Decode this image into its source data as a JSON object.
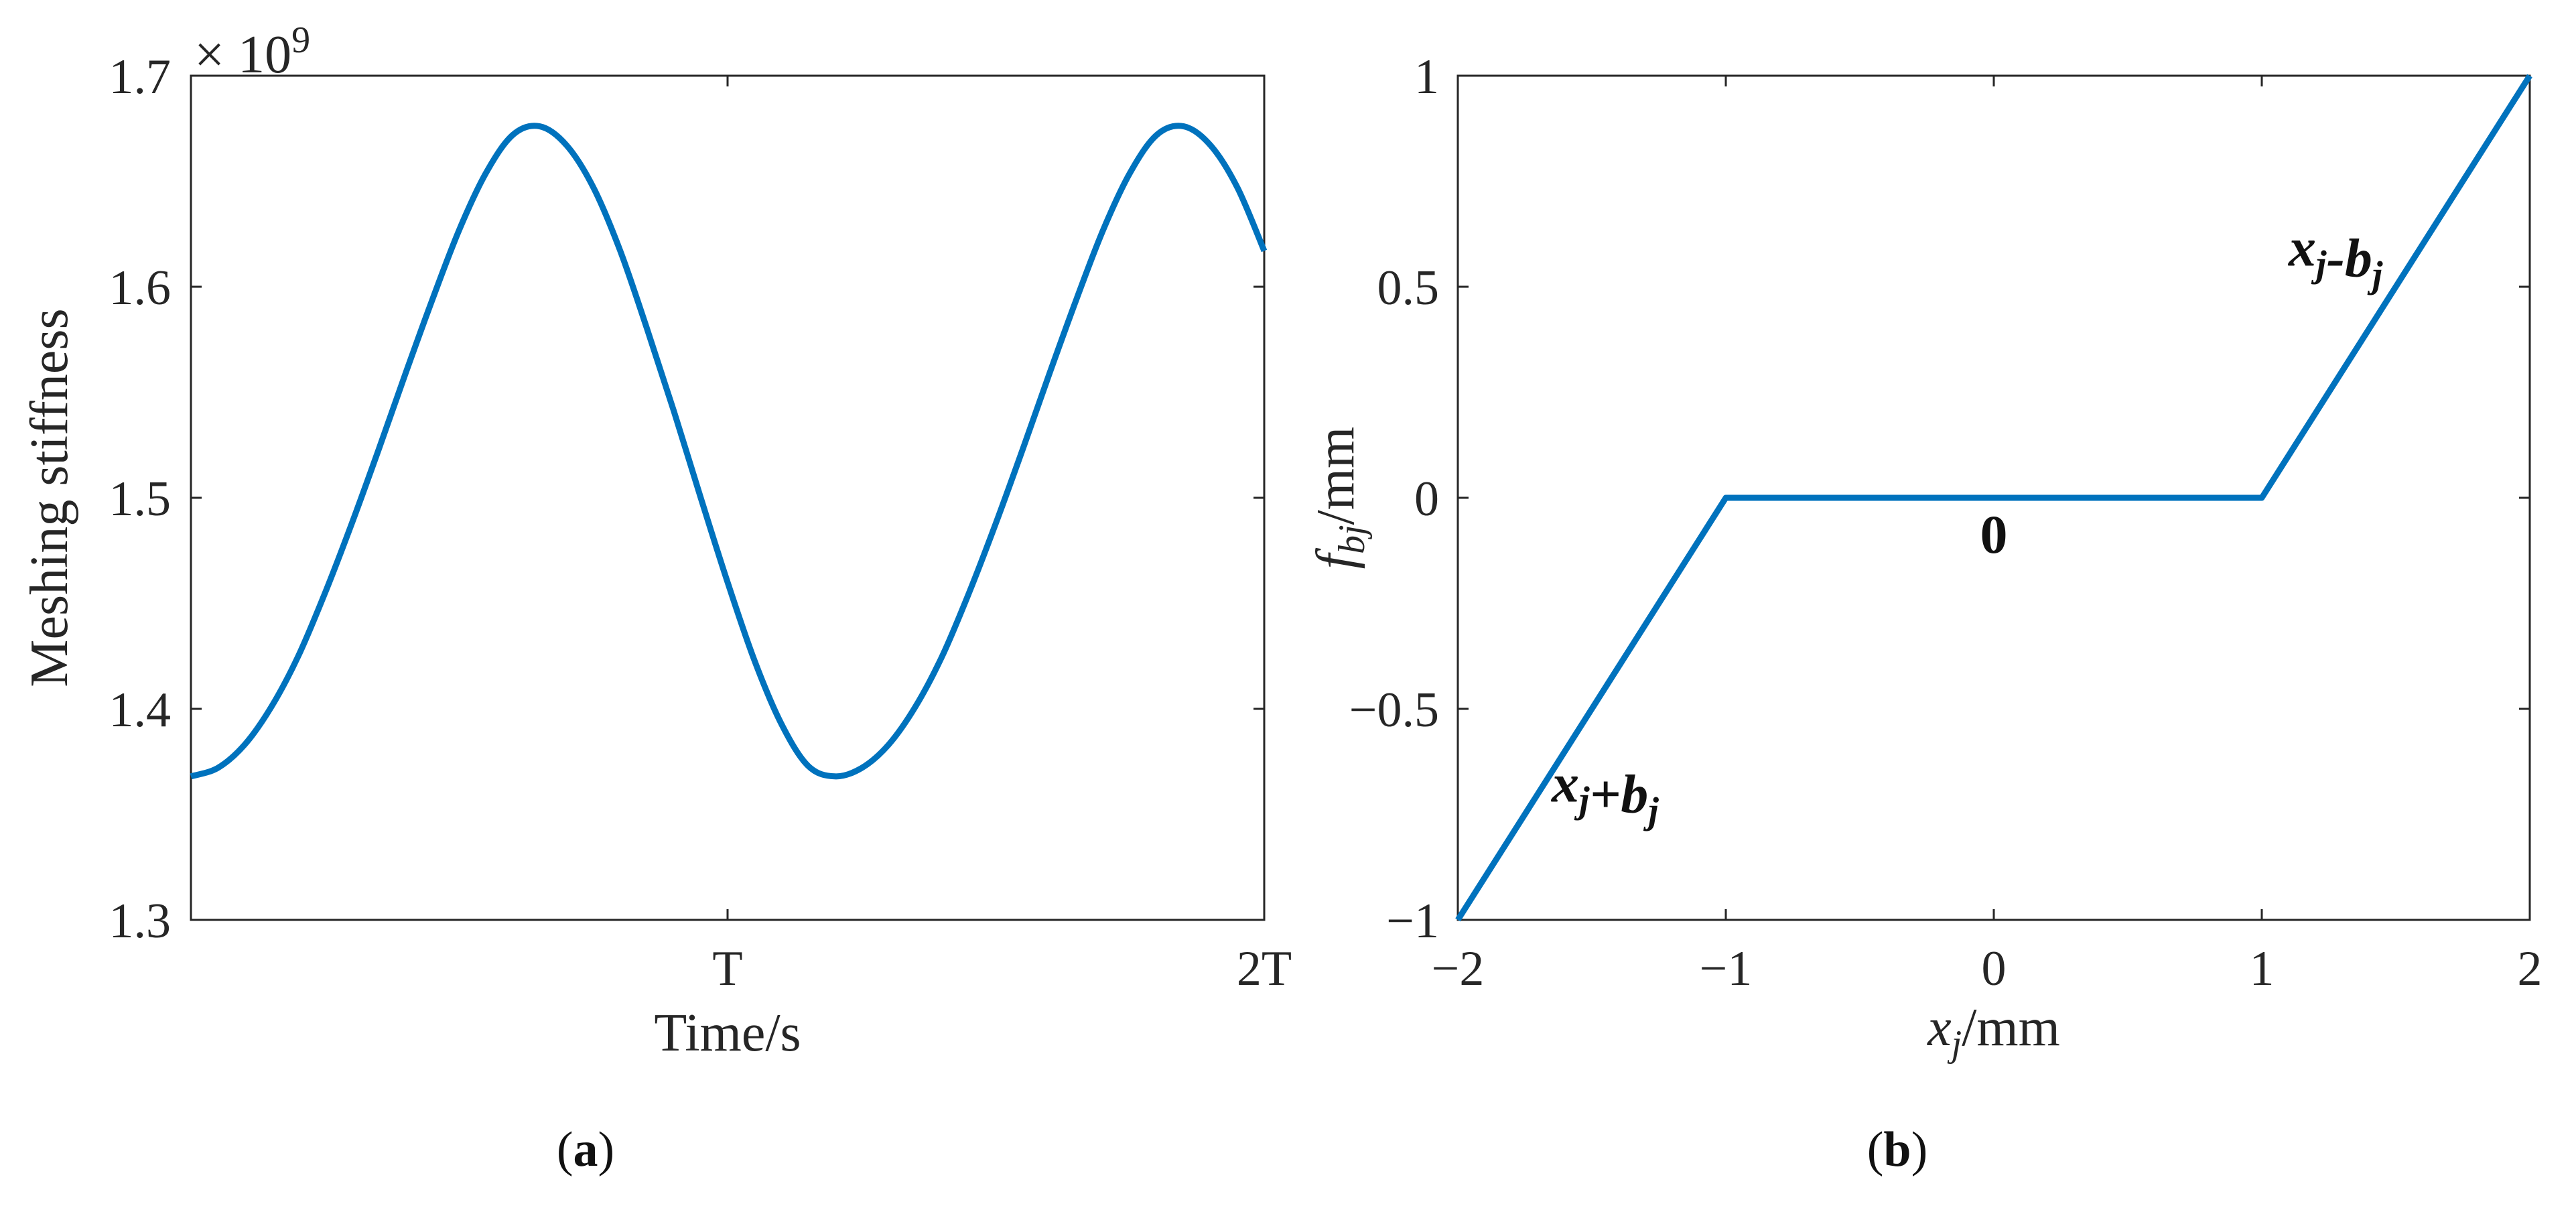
{
  "chart_data": [
    {
      "type": "line",
      "panel_caption": {
        "open": "(",
        "letter": "a",
        "close": ")"
      },
      "xlabel": "Time/s",
      "ylabel": "Meshing stiffness",
      "exponent_label": {
        "base": "× 10",
        "power": "9"
      },
      "ylim": [
        1.3,
        1.7
      ],
      "xlim": [
        0,
        2
      ],
      "x_ticks": [
        {
          "value": 1,
          "label": "T"
        },
        {
          "value": 2,
          "label": "2T"
        }
      ],
      "y_ticks": [
        {
          "value": 1.3,
          "label": "1.3"
        },
        {
          "value": 1.4,
          "label": "1.4"
        },
        {
          "value": 1.5,
          "label": "1.5"
        },
        {
          "value": 1.6,
          "label": "1.6"
        },
        {
          "value": 1.7,
          "label": "1.7"
        }
      ],
      "series": [
        {
          "color": "#0072BD",
          "x": [
            0,
            0.05,
            0.1,
            0.15,
            0.2,
            0.25,
            0.3,
            0.35,
            0.4,
            0.45,
            0.5,
            0.55,
            0.6,
            0.65,
            0.7,
            0.75,
            0.8,
            0.85,
            0.9,
            0.95,
            1.0,
            1.05,
            1.1,
            1.15,
            1.2,
            1.25,
            1.3,
            1.35,
            1.4,
            1.45,
            1.5,
            1.55,
            1.6,
            1.65,
            1.7,
            1.75,
            1.8,
            1.85,
            1.9,
            1.95,
            2.0
          ],
          "y": [
            1.368,
            1.372,
            1.383,
            1.401,
            1.425,
            1.455,
            1.488,
            1.523,
            1.559,
            1.594,
            1.627,
            1.654,
            1.672,
            1.676,
            1.667,
            1.647,
            1.617,
            1.58,
            1.541,
            1.5,
            1.46,
            1.423,
            1.393,
            1.373,
            1.368,
            1.372,
            1.383,
            1.401,
            1.425,
            1.455,
            1.488,
            1.523,
            1.559,
            1.594,
            1.627,
            1.654,
            1.672,
            1.676,
            1.667,
            1.647,
            1.617
          ]
        }
      ]
    },
    {
      "type": "line",
      "panel_caption": {
        "open": "(",
        "letter": "b",
        "close": ")"
      },
      "xlabel": {
        "var": "x",
        "sub": "j",
        "unit": "/mm"
      },
      "ylabel": {
        "var": "f",
        "sub": "bj",
        "unit": "/mm"
      },
      "xlim": [
        -2,
        2
      ],
      "ylim": [
        -1,
        1
      ],
      "x_ticks": [
        {
          "value": -2,
          "label": "−2"
        },
        {
          "value": -1,
          "label": "−1"
        },
        {
          "value": 0,
          "label": "0"
        },
        {
          "value": 1,
          "label": "1"
        },
        {
          "value": 2,
          "label": "2"
        }
      ],
      "y_ticks": [
        {
          "value": -1,
          "label": "−1"
        },
        {
          "value": -0.5,
          "label": "−0.5"
        },
        {
          "value": 0,
          "label": "0"
        },
        {
          "value": 0.5,
          "label": "0.5"
        },
        {
          "value": 1,
          "label": "1"
        }
      ],
      "series": [
        {
          "color": "#0072BD",
          "x": [
            -2,
            -1,
            1,
            2
          ],
          "y": [
            -1,
            0,
            0,
            1
          ]
        }
      ],
      "annotations": [
        {
          "id": "right-branch",
          "parts": [
            {
              "t": "x"
            },
            {
              "t": "j",
              "sub": true
            },
            {
              "t": "-"
            },
            {
              "t": "b"
            },
            {
              "t": "j",
              "sub": true
            }
          ],
          "x": 1.1,
          "y": 0.55
        },
        {
          "id": "dead-zone",
          "parts": [
            {
              "t": "0",
              "upright": true
            }
          ],
          "x": 0,
          "y": -0.13
        },
        {
          "id": "left-branch",
          "parts": [
            {
              "t": "x"
            },
            {
              "t": "j",
              "sub": true
            },
            {
              "t": "+"
            },
            {
              "t": "b"
            },
            {
              "t": "j",
              "sub": true
            }
          ],
          "x": -1.65,
          "y": -0.72
        }
      ]
    }
  ]
}
